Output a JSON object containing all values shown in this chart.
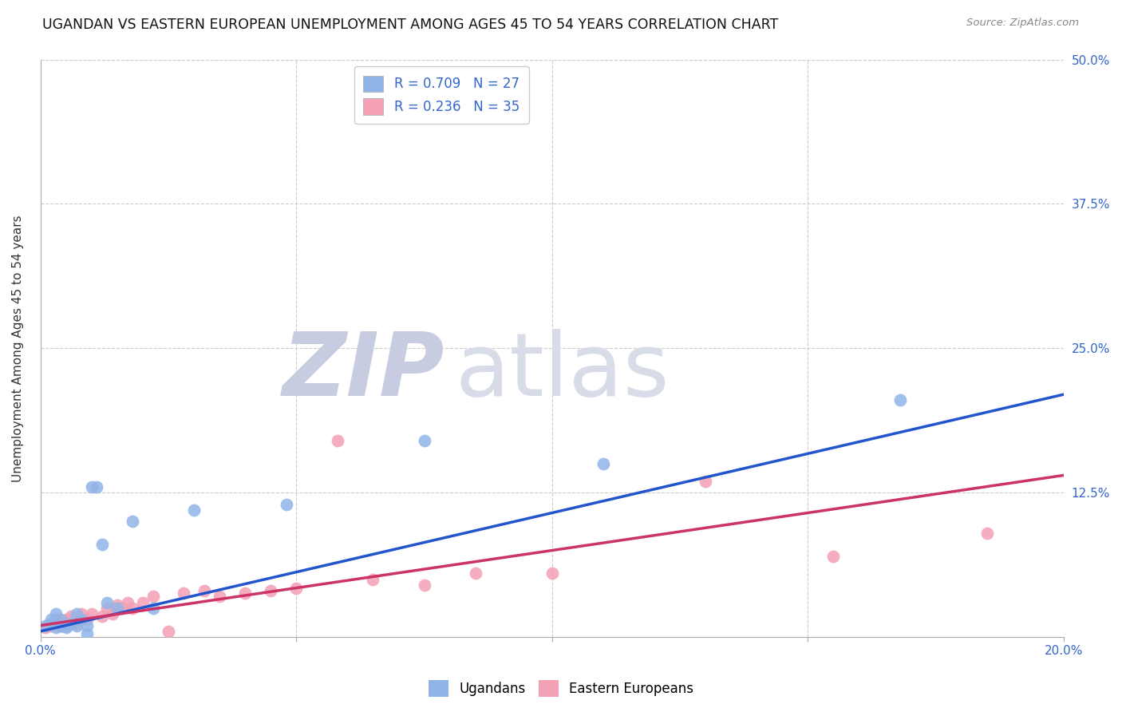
{
  "title": "UGANDAN VS EASTERN EUROPEAN UNEMPLOYMENT AMONG AGES 45 TO 54 YEARS CORRELATION CHART",
  "source": "Source: ZipAtlas.com",
  "ylabel": "Unemployment Among Ages 45 to 54 years",
  "xlim": [
    0.0,
    0.2
  ],
  "ylim": [
    0.0,
    0.5
  ],
  "xticks": [
    0.0,
    0.05,
    0.1,
    0.15,
    0.2
  ],
  "xtick_labels": [
    "0.0%",
    "",
    "",
    "",
    "20.0%"
  ],
  "ytick_labels_right": [
    "50.0%",
    "37.5%",
    "25.0%",
    "12.5%",
    ""
  ],
  "yticks_right": [
    0.5,
    0.375,
    0.25,
    0.125,
    0.0
  ],
  "ugandan_color": "#91b4e8",
  "eastern_color": "#f4a0b5",
  "ugandan_line_color": "#2255cc",
  "eastern_line_color": "#cc3366",
  "R_ugandan": 0.709,
  "N_ugandan": 27,
  "R_eastern": 0.236,
  "N_eastern": 35,
  "ugandan_x": [
    0.001,
    0.002,
    0.002,
    0.003,
    0.003,
    0.004,
    0.004,
    0.005,
    0.005,
    0.006,
    0.007,
    0.007,
    0.008,
    0.009,
    0.009,
    0.01,
    0.011,
    0.012,
    0.013,
    0.015,
    0.018,
    0.022,
    0.03,
    0.048,
    0.075,
    0.11,
    0.168
  ],
  "ugandan_y": [
    0.01,
    0.012,
    0.015,
    0.008,
    0.02,
    0.01,
    0.015,
    0.01,
    0.008,
    0.012,
    0.02,
    0.01,
    0.015,
    0.01,
    0.003,
    0.13,
    0.13,
    0.08,
    0.03,
    0.025,
    0.1,
    0.025,
    0.11,
    0.115,
    0.17,
    0.15,
    0.205
  ],
  "eastern_x": [
    0.001,
    0.002,
    0.003,
    0.003,
    0.004,
    0.005,
    0.006,
    0.007,
    0.008,
    0.009,
    0.01,
    0.012,
    0.013,
    0.014,
    0.015,
    0.016,
    0.017,
    0.018,
    0.02,
    0.022,
    0.025,
    0.028,
    0.032,
    0.035,
    0.04,
    0.045,
    0.05,
    0.058,
    0.065,
    0.075,
    0.085,
    0.1,
    0.13,
    0.155,
    0.185
  ],
  "eastern_y": [
    0.008,
    0.01,
    0.012,
    0.015,
    0.01,
    0.015,
    0.018,
    0.012,
    0.02,
    0.015,
    0.02,
    0.018,
    0.025,
    0.02,
    0.028,
    0.025,
    0.03,
    0.025,
    0.03,
    0.035,
    0.005,
    0.038,
    0.04,
    0.035,
    0.038,
    0.04,
    0.042,
    0.17,
    0.05,
    0.045,
    0.055,
    0.055,
    0.135,
    0.07,
    0.09
  ],
  "ug_line_x0": 0.0,
  "ug_line_y0": 0.005,
  "ug_line_x1": 0.2,
  "ug_line_y1": 0.21,
  "ea_line_x0": 0.0,
  "ea_line_y0": 0.01,
  "ea_line_x1": 0.2,
  "ea_line_y1": 0.14,
  "background_color": "#ffffff",
  "grid_color": "#cccccc",
  "title_fontsize": 12.5,
  "axis_label_fontsize": 11,
  "tick_fontsize": 11,
  "legend_fontsize": 12,
  "marker_size": 130
}
